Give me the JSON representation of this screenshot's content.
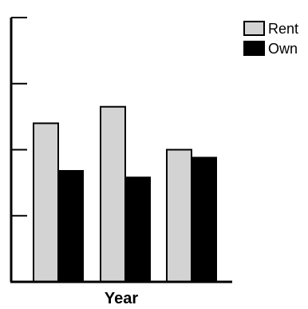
{
  "chart_data": {
    "type": "bar",
    "categories": [
      "",
      "",
      ""
    ],
    "series": [
      {
        "name": "Rent",
        "values": [
          240,
          265,
          200
        ],
        "color": "#d3d3d3"
      },
      {
        "name": "Own",
        "values": [
          168,
          158,
          188
        ],
        "color": "#000000"
      }
    ],
    "xlabel": "Year",
    "ylabel": "",
    "ylim": [
      0,
      400
    ],
    "yticks": [
      0,
      100,
      200,
      300,
      400
    ],
    "grid": false,
    "legend": "top-right"
  }
}
